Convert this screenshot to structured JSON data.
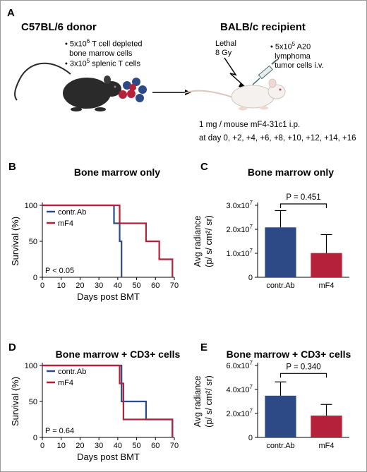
{
  "panel_a": {
    "letter": "A",
    "donor_title": "C57BL/6 donor",
    "donor_bullets": [
      {
        "pre": "5x10",
        "sup": "6",
        "post": " T cell depleted",
        "line2": "bone marrow cells"
      },
      {
        "pre": "3x10",
        "sup": "5",
        "post": " splenic T cells",
        "line2": ""
      }
    ],
    "recipient_title": "BALB/c recipient",
    "lethal_line1": "Lethal",
    "lethal_line2": "8 Gy",
    "tumor_bullet": {
      "pre": "5x10",
      "sup": "5",
      "post": " A20",
      "line2": "lymphoma",
      "line3": "tumor cells i.v."
    },
    "treatment_line1": "1 mg / mouse mF4-31c1 i.p.",
    "treatment_line2": "at day 0, +2, +4, +6, +8, +10, +12, +14, +16",
    "colors": {
      "mouse_dark": "#2a2a2a",
      "mouse_white": "#f4f1ee",
      "cell_red": "#b5203a",
      "cell_blue": "#2d4a86"
    }
  },
  "chart_data": [
    {
      "panel": "B",
      "type": "line",
      "title": "Bone marrow only",
      "xlabel": "Days post BMT",
      "ylabel": "Survival (%)",
      "xlim": [
        0,
        70
      ],
      "ylim": [
        0,
        100
      ],
      "xticks": [
        0,
        10,
        20,
        30,
        40,
        50,
        60,
        70
      ],
      "yticks": [
        0,
        50,
        100
      ],
      "legend_position": "top-left",
      "annotation": "P < 0.05",
      "series": [
        {
          "name": "contr.Ab",
          "color": "#2d4a86",
          "x": [
            0,
            38,
            38,
            41,
            41,
            42,
            42
          ],
          "y": [
            100,
            100,
            75,
            75,
            50,
            50,
            0
          ]
        },
        {
          "name": "mF4",
          "color": "#b5203a",
          "x": [
            0,
            41,
            41,
            55,
            55,
            62,
            62,
            69,
            69
          ],
          "y": [
            100,
            100,
            75,
            75,
            50,
            50,
            25,
            25,
            0
          ]
        }
      ]
    },
    {
      "panel": "C",
      "type": "bar",
      "title": "Bone marrow only",
      "ylabel": "Avg radiance",
      "ylabel2": "(p/ s/ cm²/ sr)",
      "categories": [
        "contr.Ab",
        "mF4"
      ],
      "values": [
        20800000,
        10100000
      ],
      "errors": [
        7000000,
        7700000
      ],
      "colors": [
        "#2d4a86",
        "#b5203a"
      ],
      "ylim": [
        0,
        30000000
      ],
      "yticks": [
        0,
        10000000,
        20000000,
        30000000
      ],
      "ytick_labels": [
        {
          "m": "0",
          "e": ""
        },
        {
          "m": "1.0x10",
          "e": "7"
        },
        {
          "m": "2.0x10",
          "e": "7"
        },
        {
          "m": "3.0x10",
          "e": "7"
        }
      ],
      "annotation": "P = 0.451"
    },
    {
      "panel": "D",
      "type": "line",
      "title": "Bone marrow + CD3+ cells",
      "xlabel": "Days post BMT",
      "ylabel": "Survival (%)",
      "xlim": [
        0,
        70
      ],
      "ylim": [
        0,
        100
      ],
      "xticks": [
        0,
        10,
        20,
        30,
        40,
        50,
        60,
        70
      ],
      "yticks": [
        0,
        50,
        100
      ],
      "legend_position": "top-left",
      "annotation": "P = 0.64",
      "series": [
        {
          "name": "contr.Ab",
          "color": "#2d4a86",
          "x": [
            0,
            42,
            42,
            55,
            55,
            69,
            69
          ],
          "y": [
            100,
            100,
            50,
            50,
            25,
            25,
            0
          ]
        },
        {
          "name": "mF4",
          "color": "#b5203a",
          "x": [
            0,
            41,
            41,
            43,
            43,
            69,
            69
          ],
          "y": [
            100,
            100,
            75,
            75,
            25,
            25,
            0
          ]
        }
      ]
    },
    {
      "panel": "E",
      "type": "bar",
      "title": "Bone marrow + CD3+ cells",
      "ylabel": "Avg radiance",
      "ylabel2": "(p/ s/ cm²/ sr)",
      "categories": [
        "contr.Ab",
        "mF4"
      ],
      "values": [
        34800000,
        18200000
      ],
      "errors": [
        11500000,
        9300000
      ],
      "colors": [
        "#2d4a86",
        "#b5203a"
      ],
      "ylim": [
        0,
        60000000
      ],
      "yticks": [
        0,
        20000000,
        40000000,
        60000000
      ],
      "ytick_labels": [
        {
          "m": "0",
          "e": ""
        },
        {
          "m": "2.0x10",
          "e": "7"
        },
        {
          "m": "4.0x10",
          "e": "7"
        },
        {
          "m": "6.0x10",
          "e": "7"
        }
      ],
      "annotation": "P = 0.340"
    }
  ]
}
